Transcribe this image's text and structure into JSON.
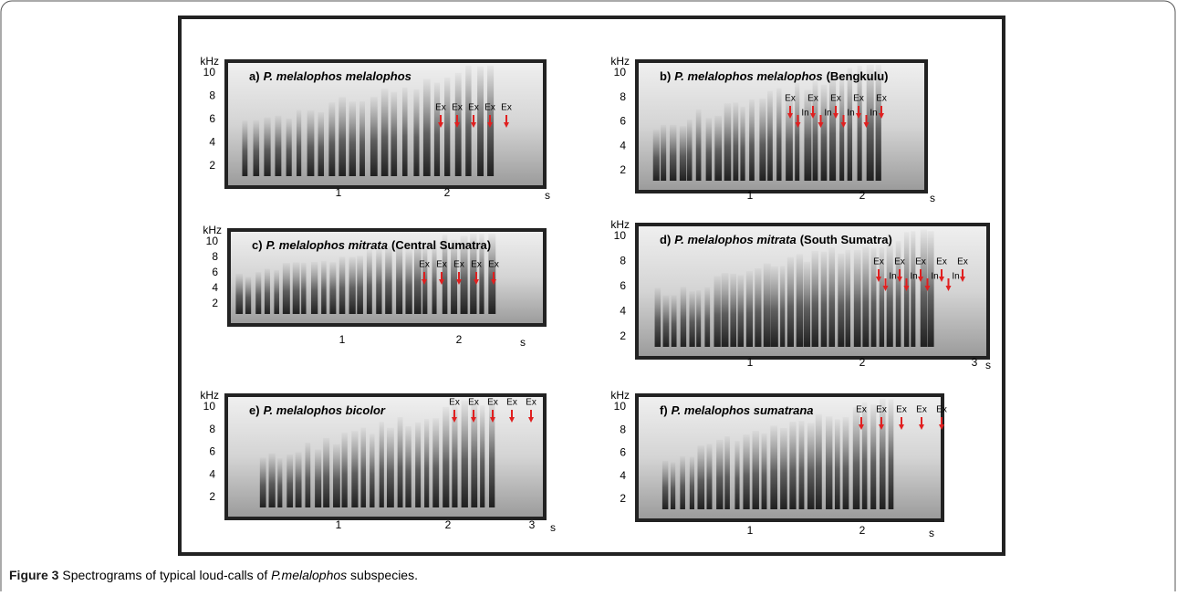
{
  "figure": {
    "panels": [
      {
        "label": "a)",
        "name": "P. melalophos melalophos",
        "location": null,
        "y_unit": "kHz",
        "y_ticks": [
          "10",
          "8",
          "6",
          "4",
          "2"
        ],
        "x_ticks": [
          "1",
          "2"
        ],
        "x_unit": "s",
        "annotations": [
          "Ex",
          "Ex",
          "Ex",
          "Ex",
          "Ex"
        ]
      },
      {
        "label": "b)",
        "name": "P. melalophos melalophos",
        "location": "(Bengkulu)",
        "y_unit": "kHz",
        "y_ticks": [
          "10",
          "8",
          "6",
          "4",
          "2"
        ],
        "x_ticks": [
          "1",
          "2"
        ],
        "x_unit": "s",
        "annotations": [
          "Ex",
          "In",
          "Ex",
          "In",
          "Ex",
          "In",
          "Ex",
          "In",
          "Ex"
        ]
      },
      {
        "label": "c)",
        "name": "P. melalophos mitrata",
        "location": "(Central Sumatra)",
        "y_unit": "kHz",
        "y_ticks": [
          "10",
          "8",
          "6",
          "4",
          "2"
        ],
        "x_ticks": [
          "1",
          "2"
        ],
        "x_unit": "s",
        "annotations": [
          "Ex",
          "Ex",
          "Ex",
          "Ex",
          "Ex"
        ]
      },
      {
        "label": "d)",
        "name": "P. melalophos mitrata",
        "location": "(South Sumatra)",
        "y_unit": "kHz",
        "y_ticks": [
          "10",
          "8",
          "6",
          "4",
          "2"
        ],
        "x_ticks": [
          "1",
          "2",
          "3"
        ],
        "x_unit": "s",
        "annotations": [
          "Ex",
          "In",
          "Ex",
          "In",
          "Ex",
          "In",
          "Ex",
          "In",
          "Ex"
        ]
      },
      {
        "label": "e)",
        "name": "P. melalophos bicolor",
        "location": null,
        "y_unit": "kHz",
        "y_ticks": [
          "10",
          "8",
          "6",
          "4",
          "2"
        ],
        "x_ticks": [
          "1",
          "2",
          "3"
        ],
        "x_unit": "s",
        "annotations": [
          "Ex",
          "Ex",
          "Ex",
          "Ex",
          "Ex"
        ]
      },
      {
        "label": "f)",
        "name": "P. melalophos sumatrana",
        "location": null,
        "y_unit": "kHz",
        "y_ticks": [
          "10",
          "8",
          "6",
          "4",
          "2"
        ],
        "x_ticks": [
          "1",
          "2"
        ],
        "x_unit": "s",
        "annotations": [
          "Ex",
          "Ex",
          "Ex",
          "Ex",
          "Ex"
        ]
      }
    ],
    "caption": {
      "label": "Figure 3",
      "text_before": "Spectrograms of typical loud-calls of",
      "italic": "P.melalophos",
      "text_after": "subspecies."
    }
  }
}
